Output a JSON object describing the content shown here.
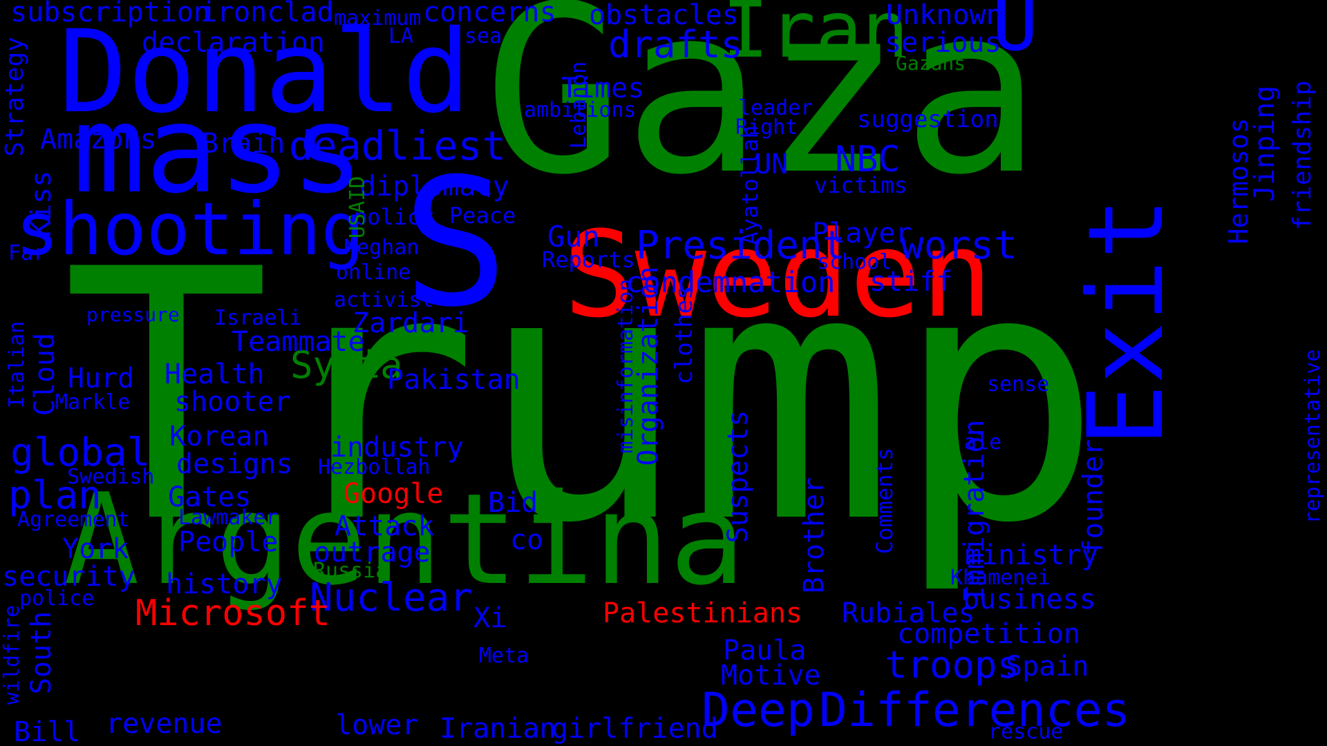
{
  "palette": {
    "green": "#008000",
    "blue": "#0000ff",
    "red": "#ff0000",
    "background": "#000000"
  },
  "words": [
    {
      "text": "Trump",
      "color": "green"
    },
    {
      "text": "Gaza",
      "color": "green"
    },
    {
      "text": "S",
      "color": "blue"
    },
    {
      "text": "Donald",
      "color": "blue"
    },
    {
      "text": "mass",
      "color": "blue"
    },
    {
      "text": "Argentina",
      "color": "green"
    },
    {
      "text": "Sweden",
      "color": "red"
    },
    {
      "text": "Exit",
      "color": "blue"
    },
    {
      "text": "shooting",
      "color": "blue"
    },
    {
      "text": "Iran",
      "color": "green"
    },
    {
      "text": "U",
      "color": "blue"
    },
    {
      "text": "Deep",
      "color": "blue"
    },
    {
      "text": "Differences",
      "color": "blue"
    },
    {
      "text": "deadliest",
      "color": "blue"
    },
    {
      "text": "President",
      "color": "blue"
    },
    {
      "text": "drafts",
      "color": "blue"
    },
    {
      "text": "Nuclear",
      "color": "blue"
    },
    {
      "text": "Microsoft",
      "color": "red"
    },
    {
      "text": "worst",
      "color": "blue"
    },
    {
      "text": "troops",
      "color": "blue"
    },
    {
      "text": "Syria",
      "color": "green"
    },
    {
      "text": "global",
      "color": "blue"
    },
    {
      "text": "plan",
      "color": "blue"
    },
    {
      "text": "NBC",
      "color": "blue"
    },
    {
      "text": "condemnation",
      "color": "blue"
    },
    {
      "text": "subscription",
      "color": "blue"
    },
    {
      "text": "ironclad",
      "color": "blue"
    },
    {
      "text": "concerns",
      "color": "blue"
    },
    {
      "text": "obstacles",
      "color": "blue"
    },
    {
      "text": "Unknown",
      "color": "blue"
    },
    {
      "text": "serious",
      "color": "blue"
    },
    {
      "text": "declaration",
      "color": "blue"
    },
    {
      "text": "maximum",
      "color": "blue"
    },
    {
      "text": "LA",
      "color": "blue"
    },
    {
      "text": "sea",
      "color": "blue"
    },
    {
      "text": "Gazans",
      "color": "green"
    },
    {
      "text": "Times",
      "color": "blue"
    },
    {
      "text": "ambitions",
      "color": "blue"
    },
    {
      "text": "leader",
      "color": "blue"
    },
    {
      "text": "Right",
      "color": "blue"
    },
    {
      "text": "suggestion",
      "color": "blue"
    },
    {
      "text": "Amazons",
      "color": "blue"
    },
    {
      "text": "Brain",
      "color": "blue"
    },
    {
      "text": "diplomacy",
      "color": "blue"
    },
    {
      "text": "UN",
      "color": "blue"
    },
    {
      "text": "victims",
      "color": "blue"
    },
    {
      "text": "policy",
      "color": "blue"
    },
    {
      "text": "Peace",
      "color": "blue"
    },
    {
      "text": "Gun",
      "color": "blue"
    },
    {
      "text": "Player",
      "color": "blue"
    },
    {
      "text": "Meghan",
      "color": "blue"
    },
    {
      "text": "Reports",
      "color": "blue"
    },
    {
      "text": "school",
      "color": "blue"
    },
    {
      "text": "online",
      "color": "blue"
    },
    {
      "text": "stiff",
      "color": "blue"
    },
    {
      "text": "activist",
      "color": "blue"
    },
    {
      "text": "pressure",
      "color": "blue"
    },
    {
      "text": "Israeli",
      "color": "blue"
    },
    {
      "text": "Zardari",
      "color": "blue"
    },
    {
      "text": "Teammate",
      "color": "blue"
    },
    {
      "text": "Hurd",
      "color": "blue"
    },
    {
      "text": "Health",
      "color": "blue"
    },
    {
      "text": "Pakistan",
      "color": "blue"
    },
    {
      "text": "Markle",
      "color": "blue"
    },
    {
      "text": "shooter",
      "color": "blue"
    },
    {
      "text": "sense",
      "color": "blue"
    },
    {
      "text": "Korean",
      "color": "blue"
    },
    {
      "text": "industry",
      "color": "blue"
    },
    {
      "text": "designs",
      "color": "blue"
    },
    {
      "text": "Hezbollah",
      "color": "blue"
    },
    {
      "text": "ale",
      "color": "blue"
    },
    {
      "text": "Swedish",
      "color": "blue"
    },
    {
      "text": "Google",
      "color": "red"
    },
    {
      "text": "Gates",
      "color": "blue"
    },
    {
      "text": "Bid",
      "color": "blue"
    },
    {
      "text": "Agreement",
      "color": "blue"
    },
    {
      "text": "Lawmaker",
      "color": "blue"
    },
    {
      "text": "Attack",
      "color": "blue"
    },
    {
      "text": "People",
      "color": "blue"
    },
    {
      "text": "co",
      "color": "blue"
    },
    {
      "text": "York",
      "color": "blue"
    },
    {
      "text": "outrage",
      "color": "blue"
    },
    {
      "text": "ministry",
      "color": "blue"
    },
    {
      "text": "security",
      "color": "blue"
    },
    {
      "text": "Russia",
      "color": "green"
    },
    {
      "text": "Khamenei",
      "color": "blue"
    },
    {
      "text": "history",
      "color": "blue"
    },
    {
      "text": "police",
      "color": "blue"
    },
    {
      "text": "business",
      "color": "blue"
    },
    {
      "text": "Palestinians",
      "color": "red"
    },
    {
      "text": "Rubiales",
      "color": "blue"
    },
    {
      "text": "Xi",
      "color": "blue"
    },
    {
      "text": "competition",
      "color": "blue"
    },
    {
      "text": "Paula",
      "color": "blue"
    },
    {
      "text": "Meta",
      "color": "blue"
    },
    {
      "text": "Motive",
      "color": "blue"
    },
    {
      "text": "Spain",
      "color": "blue"
    },
    {
      "text": "revenue",
      "color": "blue"
    },
    {
      "text": "lower",
      "color": "blue"
    },
    {
      "text": "Bill",
      "color": "blue"
    },
    {
      "text": "Iranian",
      "color": "blue"
    },
    {
      "text": "girlfriend",
      "color": "blue"
    },
    {
      "text": "rescue",
      "color": "blue"
    },
    {
      "text": "Far",
      "color": "blue"
    },
    {
      "text": "Strategy",
      "color": "blue"
    },
    {
      "text": "Kiss",
      "color": "blue"
    },
    {
      "text": "Italian",
      "color": "blue"
    },
    {
      "text": "Cloud",
      "color": "blue"
    },
    {
      "text": "South",
      "color": "blue"
    },
    {
      "text": "wildfire",
      "color": "blue"
    },
    {
      "text": "Lebanon",
      "color": "blue"
    },
    {
      "text": "USAID",
      "color": "green"
    },
    {
      "text": "Ayatollah",
      "color": "blue"
    },
    {
      "text": "misinformation",
      "color": "blue"
    },
    {
      "text": "Organization",
      "color": "blue"
    },
    {
      "text": "clothes",
      "color": "blue"
    },
    {
      "text": "Suspects",
      "color": "blue"
    },
    {
      "text": "Brother",
      "color": "blue"
    },
    {
      "text": "Immigration",
      "color": "blue"
    },
    {
      "text": "Comments",
      "color": "blue"
    },
    {
      "text": "founder",
      "color": "blue"
    },
    {
      "text": "Hermosos",
      "color": "blue"
    },
    {
      "text": "Jinping",
      "color": "blue"
    },
    {
      "text": "friendship",
      "color": "blue"
    },
    {
      "text": "representative",
      "color": "blue"
    }
  ]
}
